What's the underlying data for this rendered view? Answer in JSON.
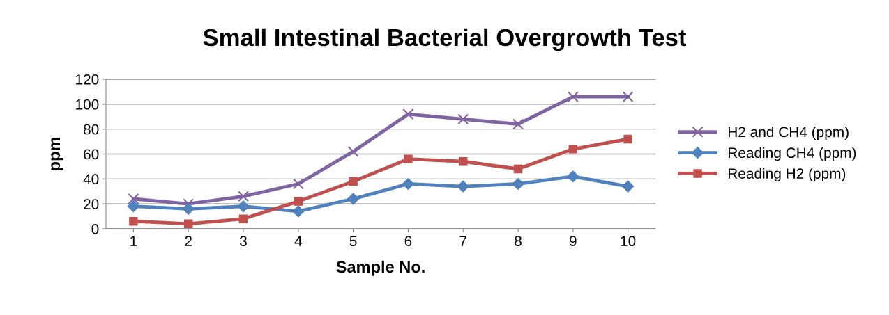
{
  "chart_data": {
    "type": "line",
    "title": "Small Intestinal Bacterial Overgrowth Test",
    "xlabel": "Sample No.",
    "ylabel": "ppm",
    "categories": [
      "1",
      "2",
      "3",
      "4",
      "5",
      "6",
      "7",
      "8",
      "9",
      "10"
    ],
    "series": [
      {
        "name": "H2 and CH4 (ppm)",
        "color": "#8064a2",
        "marker": "cross",
        "values": [
          24,
          20,
          26,
          36,
          62,
          92,
          88,
          84,
          106,
          106
        ]
      },
      {
        "name": "Reading CH4 (ppm)",
        "color": "#4f81bd",
        "marker": "diamond",
        "values": [
          18,
          16,
          18,
          14,
          24,
          36,
          34,
          36,
          42,
          34
        ]
      },
      {
        "name": "Reading H2 (ppm)",
        "color": "#c0504d",
        "marker": "square",
        "values": [
          6,
          4,
          8,
          22,
          38,
          56,
          54,
          48,
          64,
          72
        ]
      }
    ],
    "ylim": [
      0,
      120
    ],
    "yticks": [
      0,
      20,
      40,
      60,
      80,
      100,
      120
    ],
    "grid": "y",
    "legend": "right",
    "line_style": "solid"
  }
}
